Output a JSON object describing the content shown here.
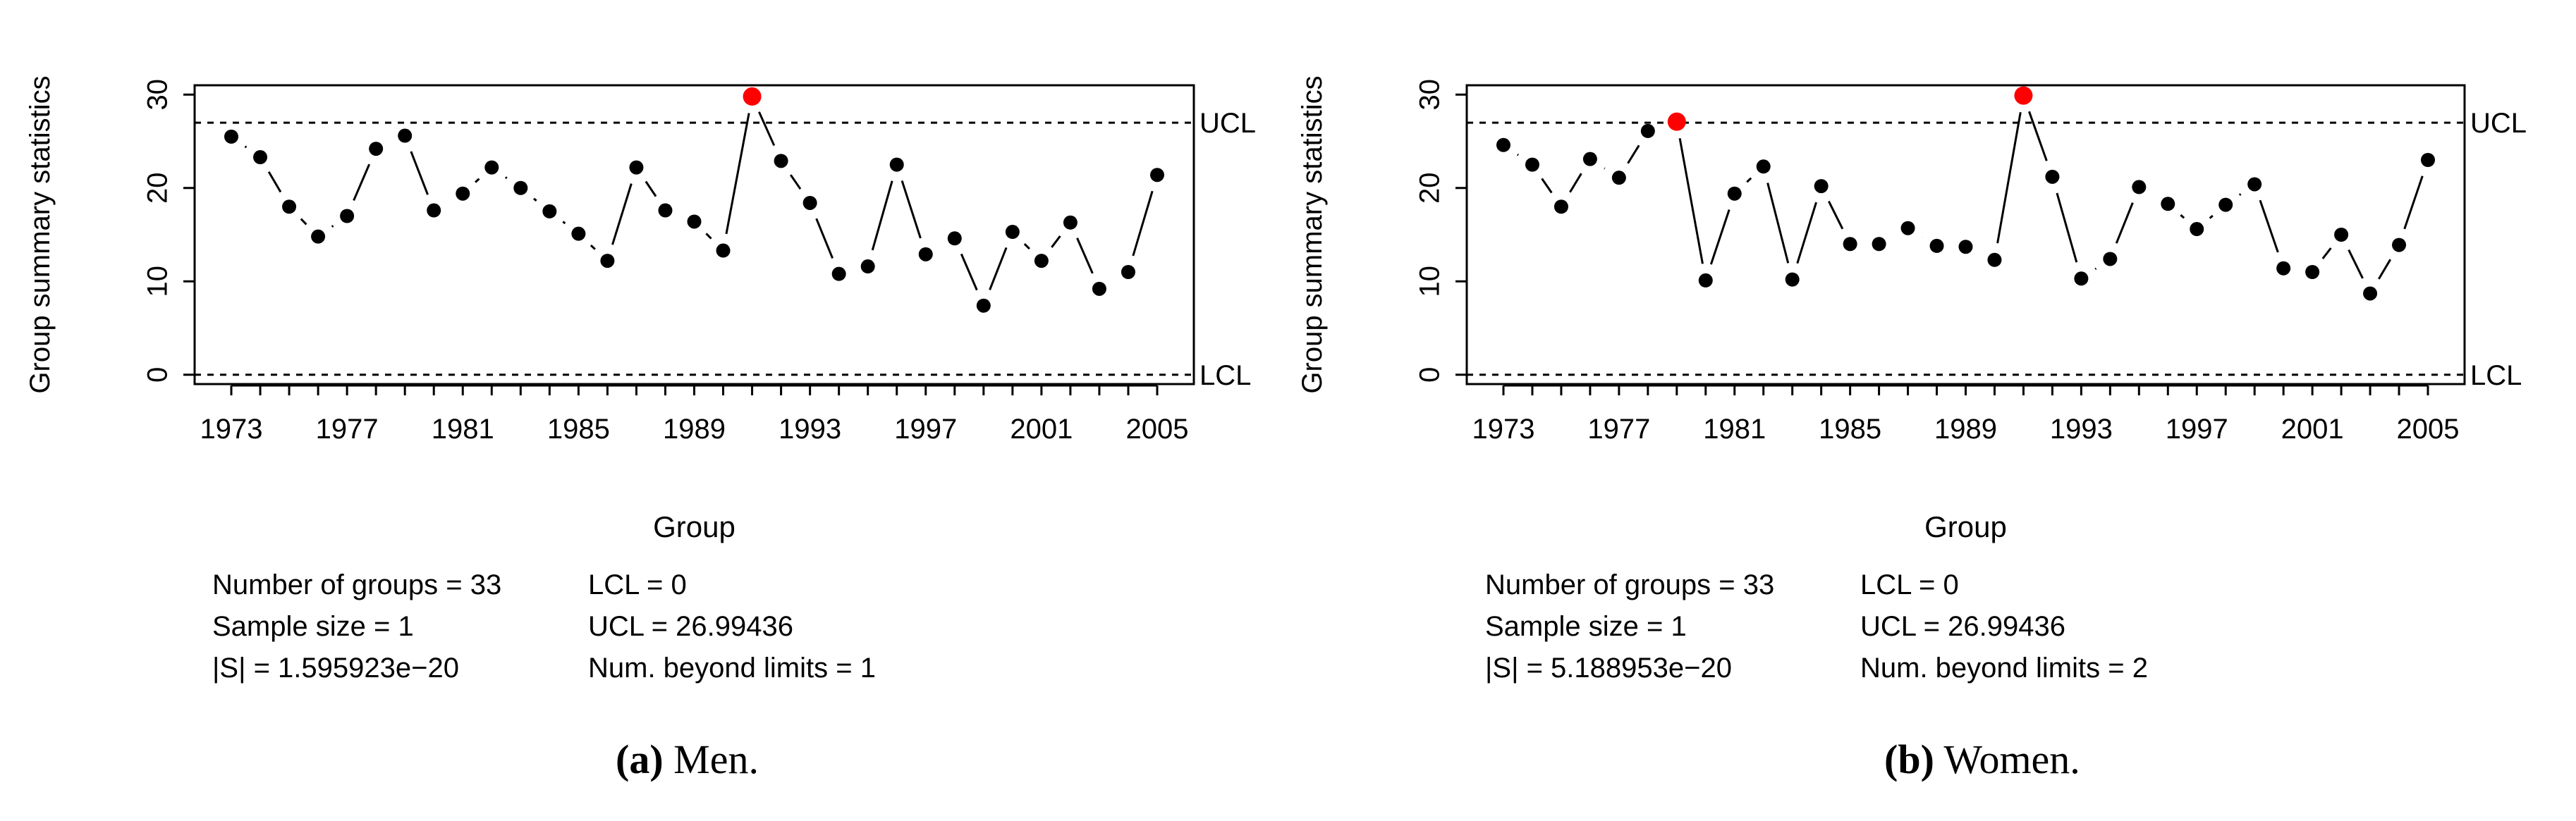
{
  "colors": {
    "point": "#000000",
    "violation": "#ff0000",
    "limit_text": "#555555"
  },
  "chart_data": [
    {
      "type": "line",
      "panel": "a",
      "caption_letter": "(a)",
      "caption_text": " Men.",
      "title": "",
      "xlabel": "Group",
      "ylabel": "Group summary statistics",
      "x_tick_labels": [
        "1973",
        "1977",
        "1981",
        "1985",
        "1989",
        "1993",
        "1997",
        "2001",
        "2005"
      ],
      "y_tick_labels": [
        "0",
        "10",
        "20",
        "30"
      ],
      "ylim": [
        -1,
        31
      ],
      "categories": [
        "1973",
        "1974",
        "1975",
        "1976",
        "1977",
        "1978",
        "1979",
        "1980",
        "1981",
        "1982",
        "1983",
        "1984",
        "1985",
        "1986",
        "1987",
        "1988",
        "1989",
        "1990",
        "1991",
        "1992",
        "1993",
        "1994",
        "1995",
        "1996",
        "1997",
        "1998",
        "1999",
        "2000",
        "2001",
        "2002",
        "2003",
        "2004",
        "2005"
      ],
      "values": [
        25.5,
        23.3,
        18.0,
        14.8,
        17.0,
        24.2,
        25.6,
        17.6,
        19.4,
        22.2,
        20.0,
        17.5,
        15.1,
        12.2,
        22.2,
        17.6,
        16.4,
        13.3,
        29.8,
        22.9,
        18.4,
        10.8,
        11.6,
        22.5,
        12.9,
        14.6,
        7.4,
        15.3,
        12.2,
        16.3,
        9.2,
        11.0,
        21.4
      ],
      "beyond_limits_index": [
        18
      ],
      "UCL": 26.99436,
      "LCL": 0,
      "ucl_label": "UCL",
      "lcl_label": "LCL",
      "stats": {
        "groups": "Number of groups = 33",
        "sample_size": "Sample size = 1",
        "s_det": "|S| = 1.595923e−20",
        "lcl": "LCL = 0",
        "ucl": "UCL = 26.99436",
        "beyond": "Num. beyond limits = 1"
      }
    },
    {
      "type": "line",
      "panel": "b",
      "caption_letter": "(b)",
      "caption_text": " Women.",
      "title": "",
      "xlabel": "Group",
      "ylabel": "Group summary statistics",
      "x_tick_labels": [
        "1973",
        "1977",
        "1981",
        "1985",
        "1989",
        "1993",
        "1997",
        "2001",
        "2005"
      ],
      "y_tick_labels": [
        "0",
        "10",
        "20",
        "30"
      ],
      "ylim": [
        -1,
        31
      ],
      "categories": [
        "1973",
        "1974",
        "1975",
        "1976",
        "1977",
        "1978",
        "1979",
        "1980",
        "1981",
        "1982",
        "1983",
        "1984",
        "1985",
        "1986",
        "1987",
        "1988",
        "1989",
        "1990",
        "1991",
        "1992",
        "1993",
        "1994",
        "1995",
        "1996",
        "1997",
        "1998",
        "1999",
        "2000",
        "2001",
        "2002",
        "2003",
        "2004",
        "2005"
      ],
      "values": [
        24.6,
        22.5,
        18.0,
        23.1,
        21.1,
        26.1,
        27.1,
        10.1,
        19.4,
        22.3,
        10.2,
        20.2,
        14.0,
        14.0,
        15.7,
        13.8,
        13.7,
        12.3,
        29.9,
        21.2,
        10.3,
        12.4,
        20.1,
        18.3,
        15.6,
        18.2,
        20.4,
        11.4,
        11.0,
        15.0,
        8.7,
        13.9,
        23.0
      ],
      "beyond_limits_index": [
        6,
        18
      ],
      "UCL": 26.99436,
      "LCL": 0,
      "ucl_label": "UCL",
      "lcl_label": "LCL",
      "stats": {
        "groups": "Number of groups = 33",
        "sample_size": "Sample size = 1",
        "s_det": "|S| = 5.188953e−20",
        "lcl": "LCL = 0",
        "ucl": "UCL = 26.99436",
        "beyond": "Num. beyond limits = 2"
      }
    }
  ]
}
